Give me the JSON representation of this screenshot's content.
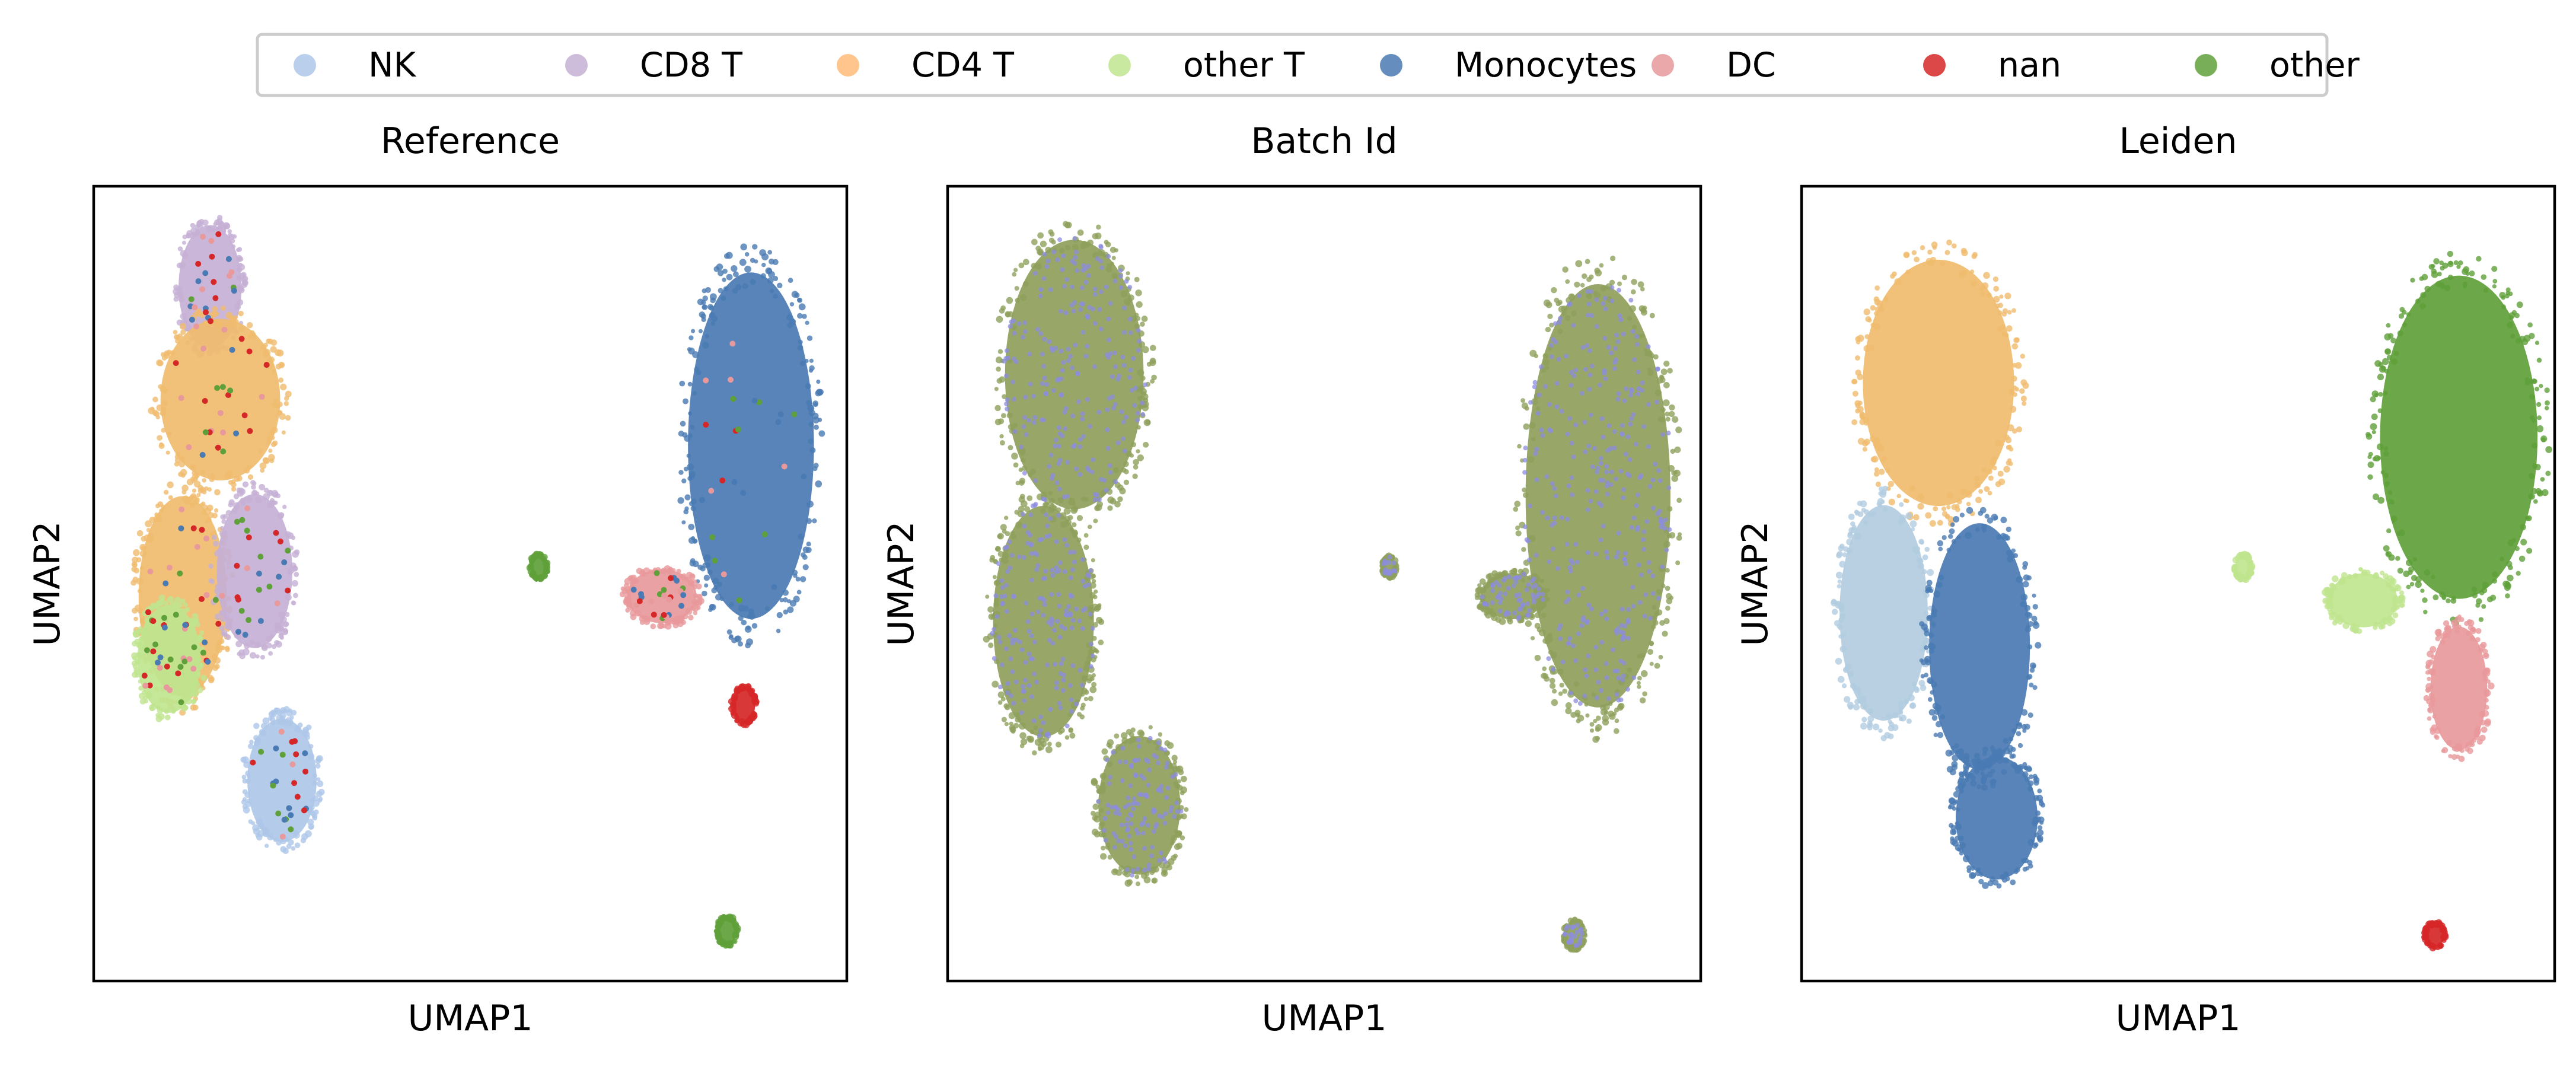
{
  "legend": {
    "placement": "top-center",
    "items": [
      {
        "label": "NK",
        "color": "#aec7e8"
      },
      {
        "label": "CD8 T",
        "color": "#c5b0d5"
      },
      {
        "label": "CD4 T",
        "color": "#ffbb78"
      },
      {
        "label": "other T",
        "color": "#bfe58f"
      },
      {
        "label": "Monocytes",
        "color": "#4a7ab3"
      },
      {
        "label": "DC",
        "color": "#e8999b"
      },
      {
        "label": "nan",
        "color": "#d62728"
      },
      {
        "label": "other",
        "color": "#5fa03a"
      }
    ]
  },
  "chart_data": [
    {
      "type": "scatter",
      "title": "Reference",
      "xlabel": "UMAP1",
      "ylabel": "UMAP2",
      "ticks": false,
      "grid": false,
      "clusters": [
        {
          "label": "CD8 T",
          "color": "#c5b0d5",
          "center": [
            -7.6,
            7.6
          ],
          "extent": [
            1.0,
            1.6
          ]
        },
        {
          "label": "CD4 T",
          "color": "#f0bc6e",
          "center": [
            -7.3,
            4.9
          ],
          "extent": [
            1.9,
            2.1
          ]
        },
        {
          "label": "CD4 T",
          "color": "#f0bc6e",
          "center": [
            -8.4,
            0.2
          ],
          "extent": [
            1.4,
            2.6
          ]
        },
        {
          "label": "CD8 T",
          "color": "#c5b0d5",
          "center": [
            -6.3,
            0.8
          ],
          "extent": [
            1.2,
            2.0
          ]
        },
        {
          "label": "other T",
          "color": "#bfe58f",
          "center": [
            -8.8,
            -1.3
          ],
          "extent": [
            1.0,
            1.4
          ]
        },
        {
          "label": "NK",
          "color": "#aec7e8",
          "center": [
            -5.5,
            -4.2
          ],
          "extent": [
            1.1,
            1.6
          ]
        },
        {
          "label": "Monocytes",
          "color": "#4a7ab3",
          "center": [
            8.2,
            3.8
          ],
          "extent": [
            2.0,
            4.5
          ]
        },
        {
          "label": "DC",
          "color": "#e8999b",
          "center": [
            5.6,
            0.2
          ],
          "extent": [
            1.1,
            0.7
          ]
        },
        {
          "label": "nan",
          "color": "#d62728",
          "center": [
            8.0,
            -2.4
          ],
          "extent": [
            0.35,
            0.45
          ]
        },
        {
          "label": "other",
          "color": "#5fa03a",
          "center": [
            7.5,
            -7.8
          ],
          "extent": [
            0.3,
            0.35
          ]
        },
        {
          "label": "other",
          "color": "#5fa03a",
          "center": [
            2.0,
            0.9
          ],
          "extent": [
            0.25,
            0.3
          ]
        }
      ]
    },
    {
      "type": "scatter",
      "title": "Batch Id",
      "xlabel": "UMAP1",
      "ylabel": "UMAP2",
      "ticks": false,
      "grid": false,
      "series_colors": [
        "#8fa05b",
        "#8c8ce0"
      ],
      "clusters": [
        {
          "color": "#8fa05b",
          "center": [
            -7.3,
            5.5
          ],
          "extent": [
            2.2,
            3.5
          ]
        },
        {
          "color": "#8fa05b",
          "center": [
            -8.2,
            -0.4
          ],
          "extent": [
            1.6,
            3.0
          ]
        },
        {
          "color": "#8fa05b",
          "center": [
            -5.4,
            -4.8
          ],
          "extent": [
            1.3,
            1.8
          ]
        },
        {
          "color": "#8fa05b",
          "center": [
            8.0,
            2.6
          ],
          "extent": [
            2.3,
            5.5
          ]
        },
        {
          "color": "#8fa05b",
          "center": [
            5.5,
            0.2
          ],
          "extent": [
            1.0,
            0.6
          ]
        },
        {
          "color": "#8fa05b",
          "center": [
            7.3,
            -7.9
          ],
          "extent": [
            0.3,
            0.35
          ]
        },
        {
          "color": "#8fa05b",
          "center": [
            1.9,
            0.9
          ],
          "extent": [
            0.2,
            0.25
          ]
        }
      ]
    },
    {
      "type": "scatter",
      "title": "Leiden",
      "xlabel": "UMAP1",
      "ylabel": "UMAP2",
      "ticks": false,
      "grid": false,
      "clusters": [
        {
          "label": "CD4 T",
          "color": "#f0bc6e",
          "center": [
            -7.0,
            5.3
          ],
          "extent": [
            2.4,
            3.2
          ]
        },
        {
          "label": "NK",
          "color": "#b2cce0",
          "center": [
            -8.6,
            -0.2
          ],
          "extent": [
            1.4,
            2.8
          ]
        },
        {
          "label": "Monocytes",
          "color": "#4a7ab3",
          "center": [
            -5.8,
            -1.0
          ],
          "extent": [
            1.6,
            3.2
          ]
        },
        {
          "label": "Monocytes",
          "color": "#4a7ab3",
          "center": [
            -5.3,
            -5.1
          ],
          "extent": [
            1.3,
            1.6
          ]
        },
        {
          "label": "other",
          "color": "#5fa03a",
          "center": [
            8.2,
            4.0
          ],
          "extent": [
            2.5,
            4.2
          ]
        },
        {
          "label": "other T",
          "color": "#bfe58f",
          "center": [
            5.4,
            0.1
          ],
          "extent": [
            1.1,
            0.7
          ]
        },
        {
          "label": "DC",
          "color": "#e8999b",
          "center": [
            8.2,
            -2.0
          ],
          "extent": [
            0.9,
            1.6
          ]
        },
        {
          "label": "nan",
          "color": "#d62728",
          "center": [
            7.5,
            -7.9
          ],
          "extent": [
            0.3,
            0.3
          ]
        },
        {
          "label": "other T",
          "color": "#bfe58f",
          "center": [
            1.9,
            0.9
          ],
          "extent": [
            0.25,
            0.3
          ]
        }
      ]
    }
  ]
}
